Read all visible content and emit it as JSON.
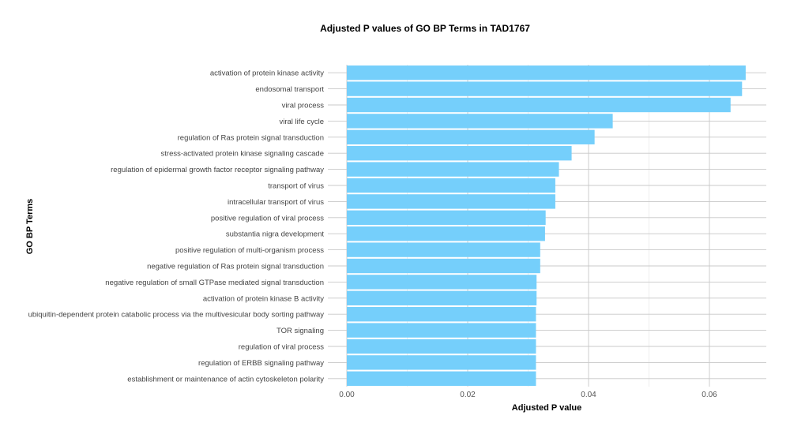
{
  "chart_data": {
    "type": "bar",
    "orientation": "horizontal",
    "title": "Adjusted P values of GO BP Terms in TAD1767",
    "xlabel": "Adjusted P value",
    "ylabel": "GO BP Terms",
    "xlim": [
      0,
      0.069
    ],
    "xticks": [
      "0.00",
      "0.02",
      "0.04",
      "0.06"
    ],
    "grid": true,
    "bar_color": "#75CFFB",
    "categories": [
      "activation of protein kinase activity",
      "endosomal transport",
      "viral process",
      "viral life cycle",
      "regulation of Ras protein signal transduction",
      "stress-activated protein kinase signaling cascade",
      "regulation of epidermal growth factor receptor signaling pathway",
      "transport of virus",
      "intracellular transport of virus",
      "positive regulation of viral process",
      "substantia nigra development",
      "positive regulation of multi-organism process",
      "negative regulation of Ras protein signal transduction",
      "negative regulation of small GTPase mediated signal transduction",
      "activation of protein kinase B activity",
      "ubiquitin-dependent protein catabolic process via the multivesicular body sorting pathway",
      "TOR signaling",
      "regulation of viral process",
      "regulation of ERBB signaling pathway",
      "establishment or maintenance of actin cytoskeleton polarity"
    ],
    "values": [
      0.066,
      0.0654,
      0.0635,
      0.044,
      0.041,
      0.0372,
      0.0351,
      0.0345,
      0.0345,
      0.0329,
      0.0328,
      0.032,
      0.032,
      0.0314,
      0.0314,
      0.0313,
      0.0313,
      0.0313,
      0.0313,
      0.0313
    ]
  }
}
